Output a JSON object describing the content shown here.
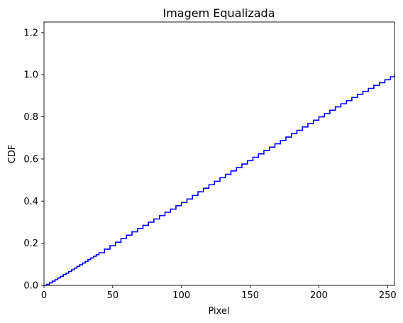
{
  "chart_data": {
    "type": "line",
    "title": "Imagem Equalizada",
    "xlabel": "Pixel",
    "ylabel": "CDF",
    "xlim": [
      0,
      255
    ],
    "ylim": [
      0,
      1.25
    ],
    "xticks": [
      0,
      50,
      100,
      150,
      200,
      250
    ],
    "yticks": [
      0.0,
      0.2,
      0.4,
      0.6,
      0.8,
      1.0,
      1.2
    ],
    "xtick_labels": [
      "0",
      "50",
      "100",
      "150",
      "200",
      "250"
    ],
    "ytick_labels": [
      "0.0",
      "0.2",
      "0.4",
      "0.6",
      "0.8",
      "1.0",
      "1.2"
    ],
    "grid": false,
    "line_color": "#0000ff",
    "series": [
      {
        "x": [
          0,
          2,
          4,
          6,
          8,
          10,
          12,
          14,
          16,
          18,
          20,
          22,
          24,
          26,
          28,
          30,
          32,
          34,
          36,
          38,
          40,
          44,
          48,
          52,
          56,
          60,
          64,
          68,
          72,
          76,
          80,
          84,
          88,
          92,
          96,
          100,
          104,
          108,
          112,
          116,
          120,
          124,
          128,
          132,
          136,
          140,
          144,
          148,
          152,
          156,
          160,
          164,
          168,
          172,
          176,
          180,
          184,
          188,
          192,
          196,
          200,
          204,
          208,
          212,
          216,
          220,
          224,
          228,
          232,
          236,
          240,
          244,
          248,
          252,
          255
        ],
        "y": [
          0.0,
          0.005,
          0.012,
          0.02,
          0.027,
          0.035,
          0.043,
          0.051,
          0.058,
          0.066,
          0.074,
          0.082,
          0.09,
          0.098,
          0.106,
          0.114,
          0.122,
          0.13,
          0.138,
          0.146,
          0.155,
          0.172,
          0.188,
          0.205,
          0.222,
          0.238,
          0.254,
          0.27,
          0.285,
          0.3,
          0.315,
          0.331,
          0.347,
          0.362,
          0.378,
          0.393,
          0.41,
          0.427,
          0.444,
          0.461,
          0.478,
          0.494,
          0.511,
          0.527,
          0.543,
          0.559,
          0.576,
          0.592,
          0.608,
          0.624,
          0.64,
          0.656,
          0.672,
          0.688,
          0.704,
          0.72,
          0.736,
          0.752,
          0.768,
          0.784,
          0.8,
          0.815,
          0.831,
          0.847,
          0.862,
          0.877,
          0.892,
          0.907,
          0.921,
          0.935,
          0.949,
          0.962,
          0.976,
          0.99,
          1.0
        ]
      }
    ]
  }
}
